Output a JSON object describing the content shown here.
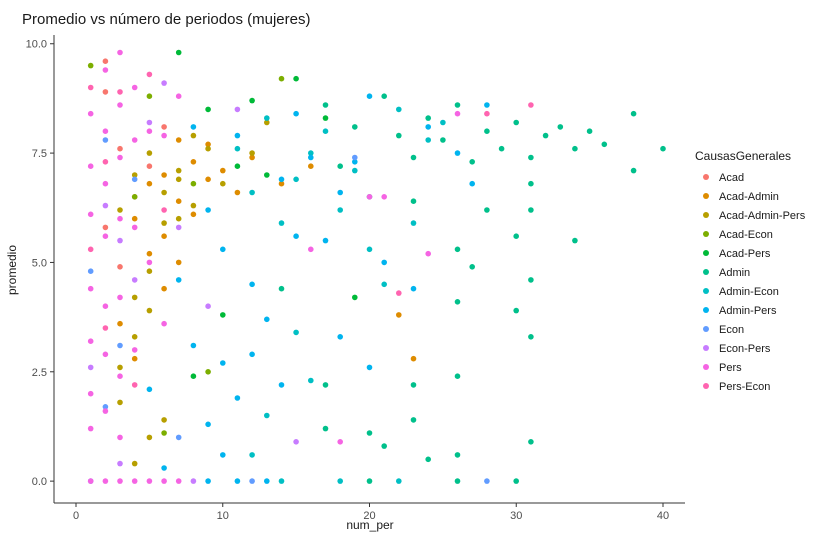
{
  "chart_data": {
    "type": "scatter",
    "title": "Promedio vs número de periodos (mujeres)",
    "xlabel": "num_per",
    "ylabel": "promedio",
    "xlim": [
      -1.5,
      41.5
    ],
    "ylim": [
      -0.5,
      10.2
    ],
    "x_ticks": [
      0,
      10,
      20,
      30,
      40
    ],
    "y_ticks": [
      0.0,
      2.5,
      5.0,
      7.5,
      10.0
    ],
    "x_tick_labels": [
      "0",
      "10",
      "20",
      "30",
      "40"
    ],
    "y_tick_labels": [
      "0.0",
      "2.5",
      "5.0",
      "7.5",
      "10.0"
    ],
    "grid": false,
    "legend": {
      "title": "CausasGenerales",
      "placement": "right"
    },
    "series": [
      {
        "name": "Acad",
        "color": "#F8766D",
        "points": [
          [
            2,
            8.9
          ],
          [
            3,
            7.6
          ],
          [
            4,
            6.5
          ],
          [
            2,
            5.8
          ],
          [
            3,
            4.9
          ],
          [
            5,
            7.2
          ],
          [
            6,
            8.1
          ],
          [
            2,
            9.6
          ]
        ]
      },
      {
        "name": "Acad-Admin",
        "color": "#DE8C00",
        "points": [
          [
            4,
            6.0
          ],
          [
            5,
            6.8
          ],
          [
            6,
            7.0
          ],
          [
            7,
            6.4
          ],
          [
            8,
            7.3
          ],
          [
            9,
            6.9
          ],
          [
            10,
            7.1
          ],
          [
            5,
            5.2
          ],
          [
            6,
            5.6
          ],
          [
            7,
            7.8
          ],
          [
            8,
            6.1
          ],
          [
            11,
            6.6
          ],
          [
            12,
            7.4
          ],
          [
            6,
            4.4
          ],
          [
            7,
            5.0
          ],
          [
            9,
            7.7
          ],
          [
            14,
            6.8
          ],
          [
            16,
            7.2
          ],
          [
            3,
            3.6
          ],
          [
            4,
            2.8
          ],
          [
            22,
            3.8
          ],
          [
            23,
            2.8
          ]
        ]
      },
      {
        "name": "Acad-Admin-Pers",
        "color": "#B79F00",
        "points": [
          [
            3,
            6.2
          ],
          [
            4,
            7.0
          ],
          [
            5,
            7.5
          ],
          [
            6,
            6.6
          ],
          [
            7,
            7.1
          ],
          [
            8,
            6.3
          ],
          [
            9,
            7.6
          ],
          [
            10,
            6.8
          ],
          [
            4,
            4.2
          ],
          [
            5,
            4.8
          ],
          [
            6,
            5.9
          ],
          [
            7,
            6.0
          ],
          [
            8,
            7.9
          ],
          [
            3,
            2.6
          ],
          [
            4,
            3.3
          ],
          [
            5,
            3.9
          ],
          [
            6,
            1.4
          ],
          [
            7,
            6.9
          ],
          [
            12,
            7.5
          ],
          [
            13,
            8.2
          ],
          [
            5,
            1.0
          ],
          [
            4,
            0.4
          ],
          [
            3,
            1.8
          ]
        ]
      },
      {
        "name": "Acad-Econ",
        "color": "#7CAE00",
        "points": [
          [
            1,
            9.5
          ],
          [
            5,
            8.8
          ],
          [
            8,
            6.8
          ],
          [
            9,
            2.5
          ],
          [
            14,
            9.2
          ],
          [
            6,
            1.1
          ],
          [
            4,
            6.5
          ]
        ]
      },
      {
        "name": "Acad-Pers",
        "color": "#00BA38",
        "points": [
          [
            7,
            9.8
          ],
          [
            12,
            8.7
          ],
          [
            13,
            7.0
          ],
          [
            15,
            9.2
          ],
          [
            17,
            8.3
          ],
          [
            19,
            4.2
          ],
          [
            11,
            7.2
          ],
          [
            9,
            8.5
          ],
          [
            10,
            3.8
          ],
          [
            8,
            2.4
          ]
        ]
      },
      {
        "name": "Admin",
        "color": "#00C08B",
        "points": [
          [
            17,
            8.6
          ],
          [
            18,
            7.2
          ],
          [
            19,
            8.1
          ],
          [
            20,
            6.5
          ],
          [
            21,
            8.8
          ],
          [
            22,
            7.9
          ],
          [
            23,
            7.4
          ],
          [
            24,
            8.3
          ],
          [
            25,
            7.8
          ],
          [
            26,
            8.6
          ],
          [
            27,
            7.3
          ],
          [
            28,
            8.0
          ],
          [
            29,
            7.6
          ],
          [
            30,
            8.2
          ],
          [
            31,
            7.4
          ],
          [
            31,
            6.8
          ],
          [
            31,
            6.2
          ],
          [
            32,
            7.9
          ],
          [
            33,
            8.1
          ],
          [
            34,
            7.6
          ],
          [
            35,
            8.0
          ],
          [
            36,
            7.7
          ],
          [
            38,
            8.4
          ],
          [
            38,
            7.1
          ],
          [
            40,
            7.6
          ],
          [
            30,
            5.6
          ],
          [
            31,
            4.6
          ],
          [
            30,
            3.9
          ],
          [
            31,
            3.3
          ],
          [
            26,
            5.3
          ],
          [
            26,
            4.1
          ],
          [
            26,
            2.4
          ],
          [
            26,
            0.6
          ],
          [
            23,
            6.4
          ],
          [
            23,
            2.2
          ],
          [
            23,
            1.4
          ],
          [
            21,
            0.8
          ],
          [
            20,
            0.0
          ],
          [
            26,
            0.0
          ],
          [
            30,
            0.0
          ],
          [
            31,
            0.9
          ],
          [
            34,
            5.5
          ],
          [
            17,
            2.2
          ],
          [
            17,
            1.2
          ],
          [
            14,
            4.4
          ],
          [
            20,
            1.1
          ],
          [
            24,
            0.5
          ],
          [
            28,
            6.2
          ],
          [
            27,
            4.9
          ]
        ]
      },
      {
        "name": "Admin-Econ",
        "color": "#00BFC4",
        "points": [
          [
            11,
            7.6
          ],
          [
            12,
            6.6
          ],
          [
            13,
            8.3
          ],
          [
            14,
            5.9
          ],
          [
            15,
            6.9
          ],
          [
            16,
            7.5
          ],
          [
            17,
            8.0
          ],
          [
            18,
            6.2
          ],
          [
            19,
            7.1
          ],
          [
            20,
            5.3
          ],
          [
            22,
            8.5
          ],
          [
            24,
            7.8
          ],
          [
            21,
            4.5
          ],
          [
            23,
            5.9
          ],
          [
            25,
            8.2
          ],
          [
            15,
            3.4
          ],
          [
            16,
            2.3
          ],
          [
            13,
            1.5
          ],
          [
            12,
            0.6
          ],
          [
            14,
            0.0
          ],
          [
            18,
            0.0
          ],
          [
            22,
            0.0
          ]
        ]
      },
      {
        "name": "Admin-Pers",
        "color": "#00B4EF",
        "points": [
          [
            8,
            8.1
          ],
          [
            9,
            6.2
          ],
          [
            10,
            5.3
          ],
          [
            10,
            2.7
          ],
          [
            11,
            7.9
          ],
          [
            12,
            4.5
          ],
          [
            13,
            3.7
          ],
          [
            14,
            6.9
          ],
          [
            15,
            8.4
          ],
          [
            16,
            7.4
          ],
          [
            17,
            5.5
          ],
          [
            18,
            6.6
          ],
          [
            19,
            7.3
          ],
          [
            20,
            8.8
          ],
          [
            21,
            5.0
          ],
          [
            24,
            8.1
          ],
          [
            26,
            7.5
          ],
          [
            28,
            8.6
          ],
          [
            9,
            1.3
          ],
          [
            10,
            0.6
          ],
          [
            11,
            1.9
          ],
          [
            12,
            2.9
          ],
          [
            8,
            3.1
          ],
          [
            7,
            4.6
          ],
          [
            6,
            0.3
          ],
          [
            9,
            0.0
          ],
          [
            11,
            0.0
          ],
          [
            13,
            0.0
          ],
          [
            5,
            2.1
          ],
          [
            14,
            2.2
          ],
          [
            15,
            5.6
          ],
          [
            18,
            3.3
          ],
          [
            20,
            2.6
          ],
          [
            23,
            4.4
          ],
          [
            27,
            6.8
          ]
        ]
      },
      {
        "name": "Econ",
        "color": "#619CFF",
        "points": [
          [
            1,
            4.8
          ],
          [
            2,
            7.8
          ],
          [
            3,
            3.1
          ],
          [
            4,
            6.9
          ],
          [
            1,
            0.0
          ],
          [
            2,
            1.7
          ],
          [
            7,
            1.0
          ],
          [
            28,
            0.0
          ],
          [
            19,
            7.4
          ],
          [
            12,
            0.0
          ]
        ]
      },
      {
        "name": "Econ-Pers",
        "color": "#C77CFF",
        "points": [
          [
            2,
            6.3
          ],
          [
            3,
            5.5
          ],
          [
            4,
            4.6
          ],
          [
            5,
            8.2
          ],
          [
            6,
            9.1
          ],
          [
            7,
            5.8
          ],
          [
            1,
            2.6
          ],
          [
            3,
            0.4
          ],
          [
            9,
            4.0
          ],
          [
            15,
            0.9
          ],
          [
            11,
            8.5
          ],
          [
            8,
            0.0
          ]
        ]
      },
      {
        "name": "Pers",
        "color": "#F564E3",
        "points": [
          [
            1,
            8.4
          ],
          [
            1,
            7.2
          ],
          [
            1,
            6.1
          ],
          [
            1,
            4.4
          ],
          [
            1,
            3.2
          ],
          [
            1,
            2.0
          ],
          [
            1,
            1.2
          ],
          [
            1,
            0.0
          ],
          [
            2,
            9.4
          ],
          [
            2,
            8.0
          ],
          [
            2,
            6.8
          ],
          [
            2,
            5.6
          ],
          [
            2,
            4.0
          ],
          [
            2,
            2.9
          ],
          [
            2,
            1.6
          ],
          [
            2,
            0.0
          ],
          [
            3,
            9.8
          ],
          [
            3,
            8.6
          ],
          [
            3,
            7.4
          ],
          [
            3,
            6.0
          ],
          [
            3,
            4.2
          ],
          [
            3,
            2.4
          ],
          [
            3,
            1.0
          ],
          [
            3,
            0.0
          ],
          [
            4,
            9.0
          ],
          [
            4,
            7.8
          ],
          [
            4,
            5.8
          ],
          [
            4,
            3.0
          ],
          [
            4,
            0.0
          ],
          [
            5,
            8.0
          ],
          [
            5,
            5.0
          ],
          [
            5,
            0.0
          ],
          [
            6,
            7.9
          ],
          [
            6,
            3.6
          ],
          [
            6,
            0.0
          ],
          [
            7,
            8.8
          ],
          [
            7,
            0.0
          ],
          [
            16,
            5.3
          ],
          [
            18,
            0.9
          ],
          [
            20,
            6.5
          ],
          [
            21,
            6.5
          ],
          [
            24,
            5.2
          ],
          [
            26,
            8.4
          ]
        ]
      },
      {
        "name": "Pers-Econ",
        "color": "#FF64B0",
        "points": [
          [
            1,
            9.0
          ],
          [
            2,
            7.3
          ],
          [
            2,
            3.5
          ],
          [
            3,
            8.9
          ],
          [
            4,
            2.2
          ],
          [
            1,
            5.3
          ],
          [
            5,
            9.3
          ],
          [
            22,
            4.3
          ],
          [
            28,
            8.4
          ],
          [
            31,
            8.6
          ],
          [
            6,
            6.2
          ]
        ]
      }
    ]
  }
}
